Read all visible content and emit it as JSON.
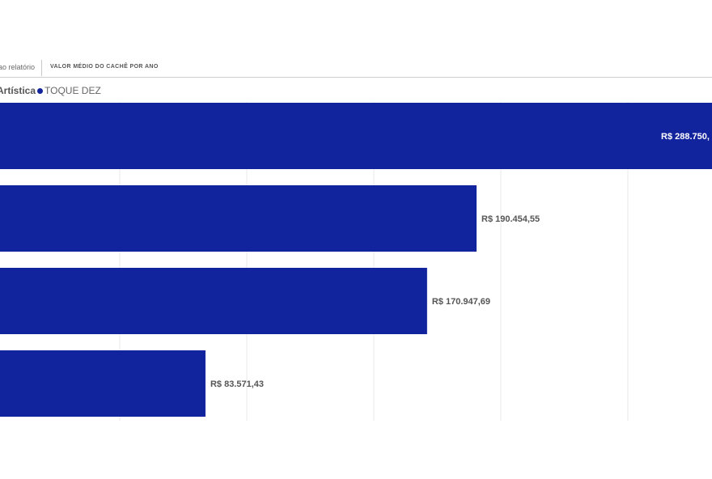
{
  "tabs": {
    "left_label": "ao relatório",
    "right_label": "VALOR MÉDIO DO CACHÊ POR ANO"
  },
  "legend": {
    "title": "Artística",
    "series_label": "TOQUE DEZ"
  },
  "colors": {
    "bar": "#12239e",
    "gridline": "#e9e9e9",
    "label_outside": "#555555",
    "label_inside": "#ffffff"
  },
  "chart_data": {
    "type": "bar",
    "orientation": "horizontal",
    "title": "",
    "series": [
      {
        "name": "TOQUE DEZ",
        "values": [
          288750,
          190454.55,
          170947.69,
          83571.43
        ],
        "labels": [
          "R$ 288.750,",
          "R$ 190.454,55",
          "R$ 170.947,69",
          "R$ 83.571,43"
        ]
      }
    ],
    "grid": true,
    "legend_position": "top-left"
  }
}
